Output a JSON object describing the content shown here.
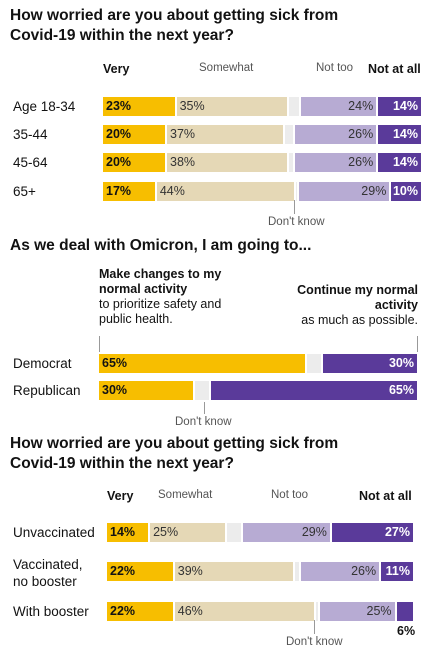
{
  "chart_data": [
    {
      "type": "bar",
      "stacked": true,
      "title": "How worried are you about getting sick from Covid-19 within the next year?",
      "segment_labels": [
        "Very",
        "Somewhat",
        "Don't know",
        "Not too",
        "Not at all"
      ],
      "categories": [
        "Age 18-34",
        "35-44",
        "45-64",
        "65+"
      ],
      "series": [
        {
          "name": "Very",
          "values": [
            23,
            20,
            20,
            17
          ],
          "labels": [
            "23%",
            "20%",
            "20%",
            "17%"
          ]
        },
        {
          "name": "Somewhat",
          "values": [
            35,
            37,
            38,
            44
          ],
          "labels": [
            "35%",
            "37%",
            "38%",
            "44%"
          ]
        },
        {
          "name": "Don't know",
          "values": [
            4,
            3,
            2,
            1
          ]
        },
        {
          "name": "Not too",
          "values": [
            24,
            26,
            26,
            29
          ],
          "labels": [
            "24%",
            "26%",
            "26%",
            "29%"
          ]
        },
        {
          "name": "Not at all",
          "values": [
            14,
            14,
            14,
            10
          ],
          "labels": [
            "14%",
            "14%",
            "14%",
            "10%"
          ]
        }
      ]
    },
    {
      "type": "bar",
      "stacked": true,
      "title": "As we deal with Omicron, I am going to...",
      "left_label_bold": "Make changes to my normal activity",
      "left_label_rest": "to prioritize safety and public health.",
      "right_label_bold": "Continue my normal activity",
      "right_label_rest": "as much as possible.",
      "dont_know_label": "Don't know",
      "categories": [
        "Democrat",
        "Republican"
      ],
      "series": [
        {
          "name": "Make changes",
          "values": [
            65,
            30
          ],
          "labels": [
            "65%",
            "30%"
          ]
        },
        {
          "name": "Don't know",
          "values": [
            5,
            5
          ]
        },
        {
          "name": "Continue",
          "values": [
            30,
            65
          ],
          "labels": [
            "30%",
            "65%"
          ]
        }
      ]
    },
    {
      "type": "bar",
      "stacked": true,
      "title": "How worried are you about getting sick from Covid-19 within the next year?",
      "segment_labels": [
        "Very",
        "Somewhat",
        "Don't know",
        "Not too",
        "Not at all"
      ],
      "categories": [
        "Unvaccinated",
        "Vaccinated, no booster",
        "With booster"
      ],
      "series": [
        {
          "name": "Very",
          "values": [
            14,
            22,
            22
          ],
          "labels": [
            "14%",
            "22%",
            "22%"
          ]
        },
        {
          "name": "Somewhat",
          "values": [
            25,
            39,
            46
          ],
          "labels": [
            "25%",
            "39%",
            "46%"
          ]
        },
        {
          "name": "Don't know",
          "values": [
            5,
            2,
            1
          ]
        },
        {
          "name": "Not too",
          "values": [
            29,
            26,
            25
          ],
          "labels": [
            "29%",
            "26%",
            "25%"
          ]
        },
        {
          "name": "Not at all",
          "values": [
            27,
            11,
            6
          ],
          "labels": [
            "27%",
            "11%",
            "6%"
          ]
        }
      ]
    }
  ],
  "colors": {
    "very": "#f7be00",
    "somewhat": "#e5d8b6",
    "dont_know": "#ececec",
    "not_too": "#b7abd3",
    "not_at_all": "#5a3a9a"
  }
}
